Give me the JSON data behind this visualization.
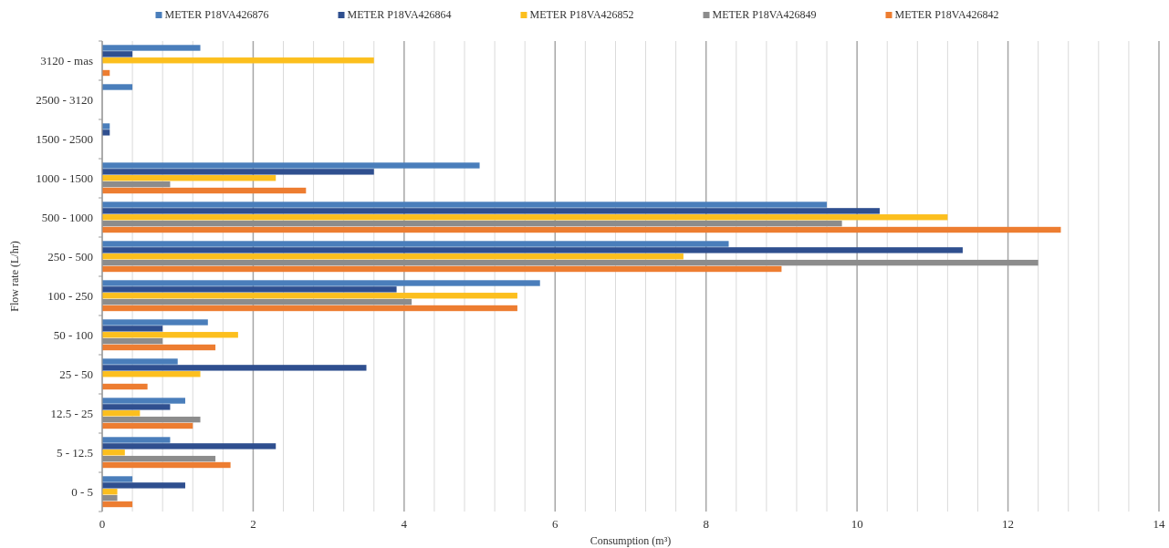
{
  "chart_data": {
    "type": "bar",
    "orientation": "horizontal",
    "xlabel": "Consumption (m³)",
    "ylabel": "Flow rate (L/hr)",
    "categories": [
      "3120 - mas",
      "2500 - 3120",
      "1500 - 2500",
      "1000 - 1500",
      "500 - 1000",
      "250 - 500",
      "100 - 250",
      "50 - 100",
      "25 - 50",
      "12.5 - 25",
      "5 - 12.5",
      "0 - 5"
    ],
    "series": [
      {
        "name": "METER P18VA426876",
        "color": "#4a7ebb",
        "values": [
          1.3,
          0.4,
          0.1,
          5.0,
          9.6,
          8.3,
          5.8,
          1.4,
          1.0,
          1.1,
          0.9,
          0.4
        ]
      },
      {
        "name": "METER P18VA426864",
        "color": "#2f4f8f",
        "values": [
          0.4,
          0,
          0.1,
          3.6,
          10.3,
          11.4,
          3.9,
          0.8,
          3.5,
          0.9,
          2.3,
          1.1
        ]
      },
      {
        "name": "METER P18VA426852",
        "color": "#fcbf1e",
        "values": [
          3.6,
          0,
          0,
          2.3,
          11.2,
          7.7,
          5.5,
          1.8,
          1.3,
          0.5,
          0.3,
          0.2
        ]
      },
      {
        "name": "METER P18VA426849",
        "color": "#8c8c8c",
        "values": [
          0,
          0,
          0,
          0.9,
          9.8,
          12.4,
          4.1,
          0.8,
          0,
          1.3,
          1.5,
          0.2
        ]
      },
      {
        "name": "METER P18VA426842",
        "color": "#ed7d31",
        "values": [
          0.1,
          0,
          0,
          2.7,
          12.7,
          9.0,
          5.5,
          1.5,
          0.6,
          1.2,
          1.7,
          0.4
        ]
      }
    ],
    "xlim": [
      0,
      14
    ],
    "xticks": [
      0,
      {
        "value": 0.4,
        "label": null
      },
      {
        "value": 0.8,
        "label": null
      },
      {
        "value": 1.2,
        "label": null
      },
      {
        "value": 1.6,
        "label": null
      },
      2,
      {
        "value": 2.4,
        "label": null
      },
      {
        "value": 2.8,
        "label": null
      },
      {
        "value": 3.2,
        "label": null
      },
      {
        "value": 3.6,
        "label": null
      },
      4,
      {
        "value": 4.4,
        "label": null
      },
      {
        "value": 4.8,
        "label": null
      },
      {
        "value": 5.2,
        "label": null
      },
      {
        "value": 5.6,
        "label": null
      },
      6,
      {
        "value": 6.4,
        "label": null
      },
      {
        "value": 6.8,
        "label": null
      },
      {
        "value": 7.2,
        "label": null
      },
      {
        "value": 7.6,
        "label": null
      },
      8,
      {
        "value": 8.4,
        "label": null
      },
      {
        "value": 8.8,
        "label": null
      },
      {
        "value": 9.2,
        "label": null
      },
      {
        "value": 9.6,
        "label": null
      },
      10,
      {
        "value": 10.4,
        "label": null
      },
      {
        "value": 10.8,
        "label": null
      },
      {
        "value": 11.2,
        "label": null
      },
      {
        "value": 11.6,
        "label": null
      },
      12,
      {
        "value": 12.4,
        "label": null
      },
      {
        "value": 12.8,
        "label": null
      },
      {
        "value": 13.2,
        "label": null
      },
      {
        "value": 13.6,
        "label": null
      },
      14
    ],
    "grid": "x",
    "legend": "top"
  }
}
